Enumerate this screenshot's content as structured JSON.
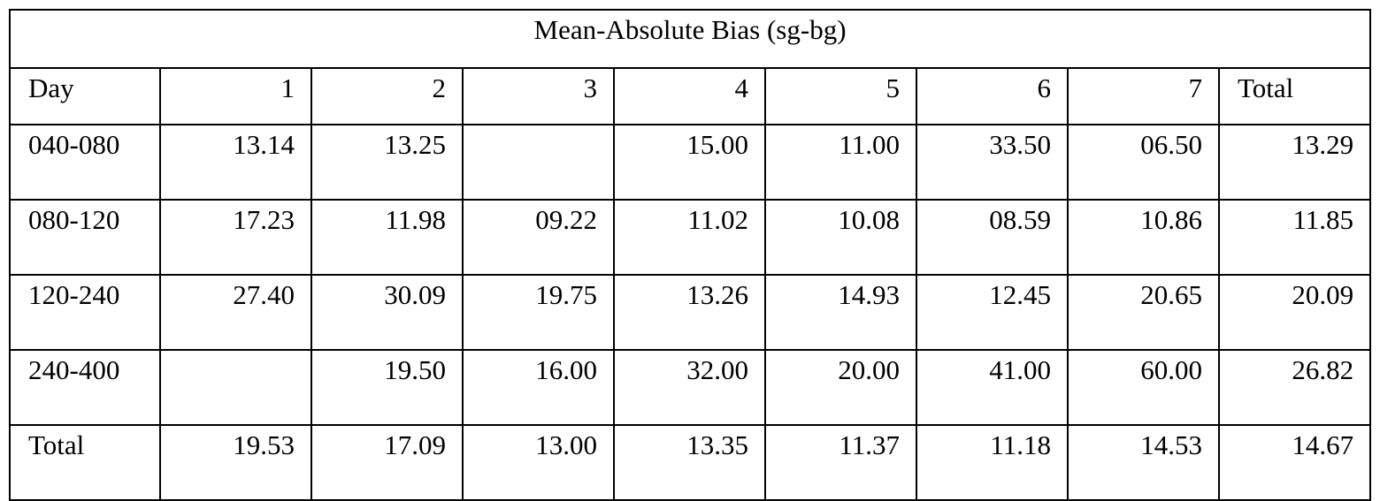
{
  "table": {
    "title": "Mean-Absolute Bias (sg-bg)",
    "headers": [
      "Day",
      "1",
      "2",
      "3",
      "4",
      "5",
      "6",
      "7",
      "Total"
    ],
    "rows": [
      {
        "label": "040-080",
        "values": [
          "13.14",
          "13.25",
          "",
          "15.00",
          "11.00",
          "33.50",
          "06.50",
          "13.29"
        ]
      },
      {
        "label": "080-120",
        "values": [
          "17.23",
          "11.98",
          "09.22",
          "11.02",
          "10.08",
          "08.59",
          "10.86",
          "11.85"
        ]
      },
      {
        "label": "120-240",
        "values": [
          "27.40",
          "30.09",
          "19.75",
          "13.26",
          "14.93",
          "12.45",
          "20.65",
          "20.09"
        ]
      },
      {
        "label": "240-400",
        "values": [
          "",
          "19.50",
          "16.00",
          "32.00",
          "20.00",
          "41.00",
          "60.00",
          "26.82"
        ]
      },
      {
        "label": "Total",
        "values": [
          "19.53",
          "17.09",
          "13.00",
          "13.35",
          "11.37",
          "11.18",
          "14.53",
          "14.67"
        ]
      }
    ]
  }
}
